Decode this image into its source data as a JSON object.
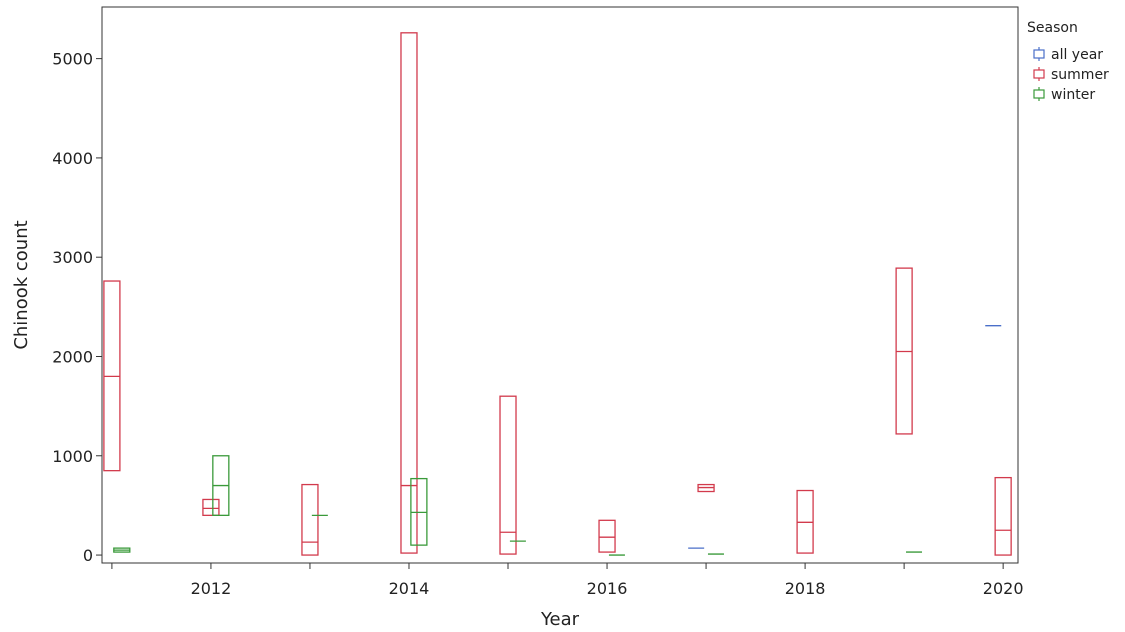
{
  "chart_data": {
    "type": "boxplot",
    "xlabel": "Year",
    "ylabel": "Chinook count",
    "xlim": [
      2010.9,
      2020.15
    ],
    "ylim": [
      -80,
      5520
    ],
    "xticks": [
      2012,
      2014,
      2016,
      2018,
      2020
    ],
    "xtick_labels": [
      "2012",
      "2014",
      "2016",
      "2018",
      "2020"
    ],
    "yticks": [
      0,
      1000,
      2000,
      3000,
      4000,
      5000
    ],
    "ytick_labels": [
      "0",
      "1000",
      "2000",
      "3000",
      "4000",
      "5000"
    ],
    "grid": false,
    "legend": {
      "title": "Season",
      "position": "right",
      "entries": [
        {
          "name": "all year",
          "color": "#4a6fc9"
        },
        {
          "name": "summer",
          "color": "#d23a4c"
        },
        {
          "name": "winter",
          "color": "#3a9a3a"
        }
      ]
    },
    "series": [
      {
        "name": "summer",
        "color": "#d23a4c",
        "boxes": [
          {
            "x": 2011.0,
            "q1": 850,
            "median": 1800,
            "q3": 2760
          },
          {
            "x": 2012.0,
            "q1": 400,
            "median": 470,
            "q3": 560
          },
          {
            "x": 2013.0,
            "q1": 0,
            "median": 130,
            "q3": 710
          },
          {
            "x": 2014.0,
            "q1": 20,
            "median": 700,
            "q3": 5260
          },
          {
            "x": 2015.0,
            "q1": 10,
            "median": 230,
            "q3": 1600
          },
          {
            "x": 2016.0,
            "q1": 30,
            "median": 180,
            "q3": 350
          },
          {
            "x": 2017.0,
            "q1": 640,
            "median": 680,
            "q3": 710
          },
          {
            "x": 2018.0,
            "q1": 20,
            "median": 330,
            "q3": 650
          },
          {
            "x": 2019.0,
            "q1": 1220,
            "median": 2050,
            "q3": 2890
          },
          {
            "x": 2020.0,
            "q1": 0,
            "median": 250,
            "q3": 780
          }
        ]
      },
      {
        "name": "winter",
        "color": "#3a9a3a",
        "boxes": [
          {
            "x": 2011.1,
            "q1": 30,
            "median": 50,
            "q3": 70
          },
          {
            "x": 2012.1,
            "q1": 400,
            "median": 700,
            "q3": 1000
          },
          {
            "x": 2013.1,
            "q1": 400,
            "median": 400,
            "q3": 400
          },
          {
            "x": 2014.1,
            "q1": 100,
            "median": 430,
            "q3": 770
          },
          {
            "x": 2015.1,
            "q1": 140,
            "median": 140,
            "q3": 140
          },
          {
            "x": 2016.1,
            "q1": 0,
            "median": 0,
            "q3": 0
          },
          {
            "x": 2017.1,
            "q1": 10,
            "median": 10,
            "q3": 10
          },
          {
            "x": 2019.1,
            "q1": 30,
            "median": 30,
            "q3": 30
          }
        ]
      },
      {
        "name": "all year",
        "color": "#4a6fc9",
        "boxes": [
          {
            "x": 2016.9,
            "q1": 70,
            "median": 70,
            "q3": 70
          },
          {
            "x": 2019.9,
            "q1": 2310,
            "median": 2310,
            "q3": 2310
          }
        ]
      }
    ]
  }
}
